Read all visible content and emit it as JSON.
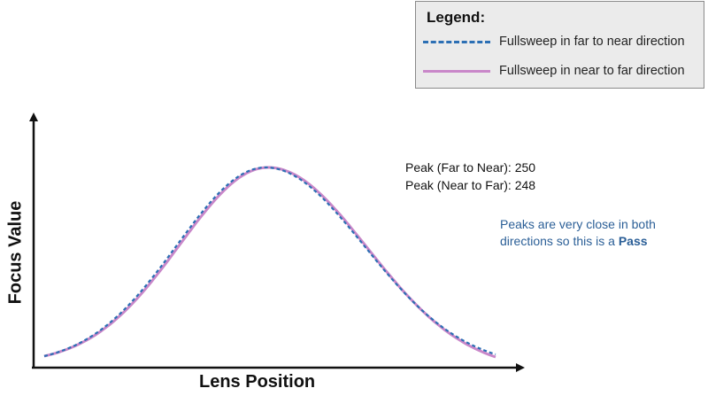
{
  "legend": {
    "title": "Legend:",
    "items": [
      {
        "label": "Fullsweep in far to near direction",
        "style": "dashed",
        "color": "#2c6fb4"
      },
      {
        "label": "Fullsweep in near to far direction",
        "style": "solid",
        "color": "#c987c9"
      }
    ]
  },
  "annotations": {
    "peak_far_to_near": "Peak (Far to Near): 250",
    "peak_near_to_far": "Peak (Near to Far): 248",
    "note_text": "Peaks are very close in both directions so this is a ",
    "note_bold": "Pass"
  },
  "chart_data": {
    "type": "line",
    "xlabel": "Lens Position",
    "ylabel": "Focus Value",
    "ticks_shown": false,
    "series": [
      {
        "name": "Fullsweep in far to near direction",
        "color": "#2c6fb4",
        "dash": true,
        "peak_x": 250
      },
      {
        "name": "Fullsweep in near to far direction",
        "color": "#c987c9",
        "dash": false,
        "peak_x": 248
      }
    ]
  }
}
